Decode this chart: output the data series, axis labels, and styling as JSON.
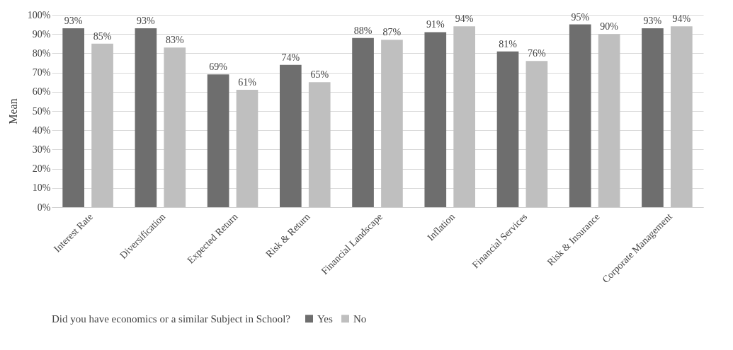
{
  "chart_data": {
    "type": "bar",
    "ylabel": "Mean",
    "legend_title": "Did you have economics or a similar Subject in School?",
    "legend": "bottom",
    "grid": "y",
    "categories": [
      "Interest Rate",
      "Diversification",
      "Expected Return",
      "Risk & Return",
      "Financial Landscape",
      "Inflation",
      "Financial Services",
      "Risk & Insurance",
      "Corporate Management"
    ],
    "series": [
      {
        "name": "Yes",
        "color": "#6e6e6e",
        "values": [
          93,
          93,
          69,
          74,
          88,
          91,
          81,
          95,
          93
        ],
        "value_labels": [
          "93%",
          "93%",
          "69%",
          "74%",
          "88%",
          "91%",
          "81%",
          "95%",
          "93%"
        ]
      },
      {
        "name": "No",
        "color": "#bfbfbf",
        "values": [
          85,
          83,
          61,
          65,
          87,
          94,
          76,
          90,
          94
        ],
        "value_labels": [
          "85%",
          "83%",
          "61%",
          "65%",
          "87%",
          "94%",
          "76%",
          "90%",
          "94%"
        ]
      }
    ],
    "ylim": [
      0,
      100
    ],
    "yticks": [
      {
        "value": 0,
        "label": "0%"
      },
      {
        "value": 10,
        "label": "10%"
      },
      {
        "value": 20,
        "label": "20%"
      },
      {
        "value": 30,
        "label": "30%"
      },
      {
        "value": 40,
        "label": "40%"
      },
      {
        "value": 50,
        "label": "50%"
      },
      {
        "value": 60,
        "label": "60%"
      },
      {
        "value": 70,
        "label": "70%"
      },
      {
        "value": 80,
        "label": "80%"
      },
      {
        "value": 90,
        "label": "90%"
      },
      {
        "value": 100,
        "label": "100%"
      }
    ]
  }
}
